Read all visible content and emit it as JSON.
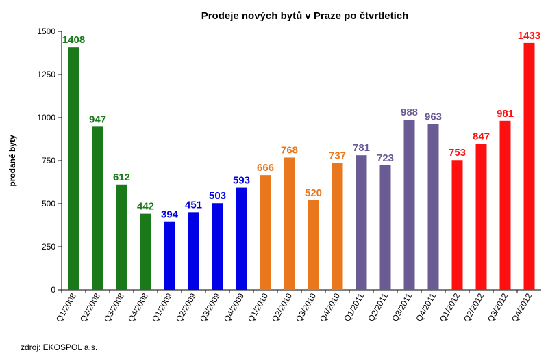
{
  "chart_data": {
    "type": "bar",
    "title": "Prodeje nových bytů v Praze po čtvrtletích",
    "y_label": "prodané byty",
    "source": "zdroj: EKOSPOL a.s.",
    "categories": [
      "Q1/2008",
      "Q2/2008",
      "Q3/2008",
      "Q4/2008",
      "Q1/2009",
      "Q2/2009",
      "Q3/2009",
      "Q4/2009",
      "Q1/2010",
      "Q2/2010",
      "Q3/2010",
      "Q4/2010",
      "Q1/2011",
      "Q2/2011",
      "Q3/2011",
      "Q4/2011",
      "Q1/2012",
      "Q2/2012",
      "Q3/2012",
      "Q4/2012"
    ],
    "values": [
      1408,
      947,
      612,
      442,
      394,
      451,
      503,
      593,
      666,
      768,
      520,
      737,
      781,
      723,
      988,
      963,
      753,
      847,
      981,
      1433
    ],
    "colors": [
      "#1a7a1a",
      "#1a7a1a",
      "#1a7a1a",
      "#1a7a1a",
      "#0000e6",
      "#0000e6",
      "#0000e6",
      "#0000e6",
      "#e8771e",
      "#e8771e",
      "#e8771e",
      "#e8771e",
      "#6b5b95",
      "#6b5b95",
      "#6b5b95",
      "#6b5b95",
      "#ff1010",
      "#ff1010",
      "#ff1010",
      "#ff1010"
    ],
    "ylim": [
      0,
      1500
    ],
    "yticks": [
      0,
      250,
      500,
      750,
      1000,
      1250,
      1500
    ],
    "grid": false
  }
}
